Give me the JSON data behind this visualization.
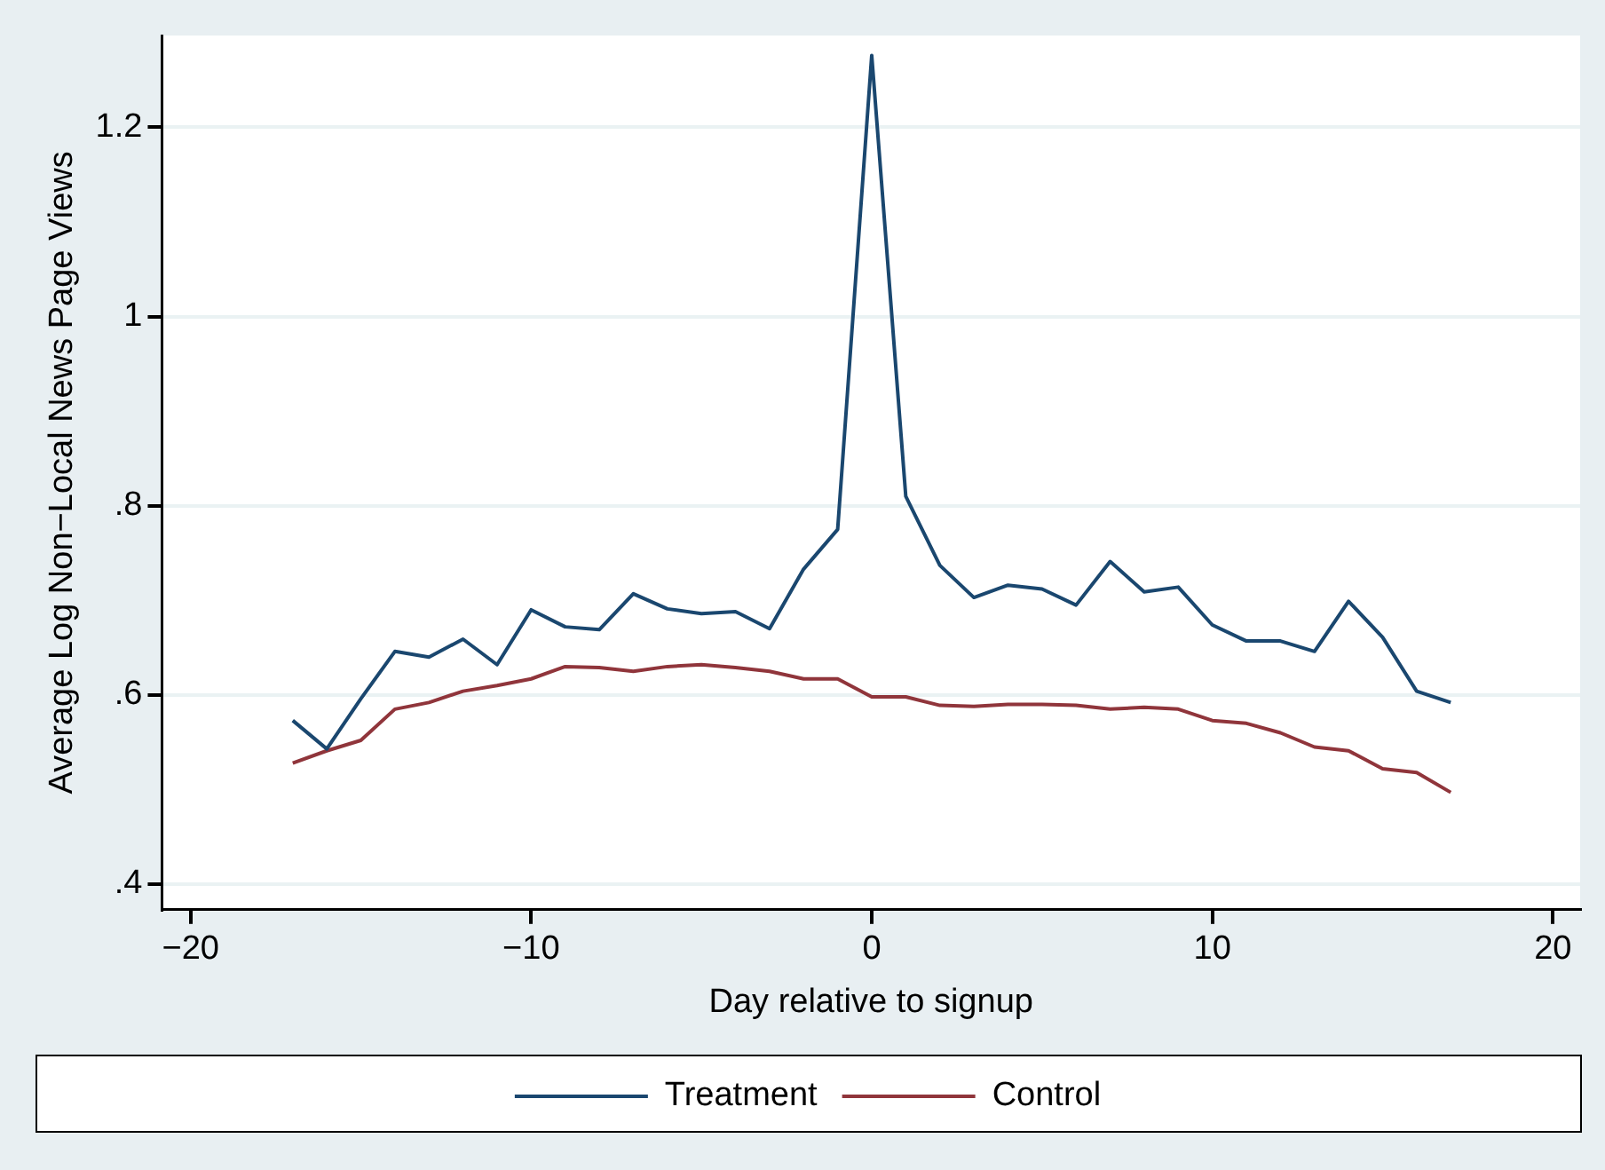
{
  "chart_data": {
    "type": "line",
    "xlabel": "Day relative to signup",
    "ylabel": "Average Log Non−Local News Page Views",
    "x": [
      -17,
      -16,
      -15,
      -14,
      -13,
      -12,
      -11,
      -10,
      -9,
      -8,
      -7,
      -6,
      -5,
      -4,
      -3,
      -2,
      -1,
      0,
      1,
      2,
      3,
      4,
      5,
      6,
      7,
      8,
      9,
      10,
      11,
      12,
      13,
      14,
      15,
      16,
      17
    ],
    "series": [
      {
        "name": "Treatment",
        "color": "#1a476f",
        "values": [
          0.573,
          0.543,
          0.596,
          0.646,
          0.64,
          0.659,
          0.632,
          0.69,
          0.672,
          0.669,
          0.707,
          0.691,
          0.686,
          0.688,
          0.67,
          0.733,
          0.775,
          1.276,
          0.81,
          0.737,
          0.703,
          0.716,
          0.712,
          0.695,
          0.741,
          0.709,
          0.714,
          0.674,
          0.657,
          0.657,
          0.646,
          0.699,
          0.661,
          0.604,
          0.592
        ]
      },
      {
        "name": "Control",
        "color": "#90353b",
        "values": [
          0.528,
          0.541,
          0.552,
          0.585,
          0.592,
          0.604,
          0.61,
          0.617,
          0.63,
          0.629,
          0.625,
          0.63,
          0.632,
          0.629,
          0.625,
          0.617,
          0.617,
          0.598,
          0.598,
          0.589,
          0.588,
          0.59,
          0.59,
          0.589,
          0.585,
          0.587,
          0.585,
          0.573,
          0.57,
          0.56,
          0.545,
          0.541,
          0.522,
          0.518,
          0.497
        ]
      }
    ],
    "xlim": [
      -20.84,
      20.8
    ],
    "xticks": [
      {
        "value": -20,
        "label": "−20"
      },
      {
        "value": -10,
        "label": "−10"
      },
      0,
      10,
      20
    ],
    "ylim": [
      0.373,
      1.297
    ],
    "yticks": [
      {
        "value": 0.4,
        "label": ".4"
      },
      {
        "value": 0.6,
        "label": ".6"
      },
      {
        "value": 0.8,
        "label": ".8"
      },
      1,
      1.2
    ],
    "grid": "y",
    "legend": "bottom",
    "marker": "none",
    "line_style": "solid"
  }
}
